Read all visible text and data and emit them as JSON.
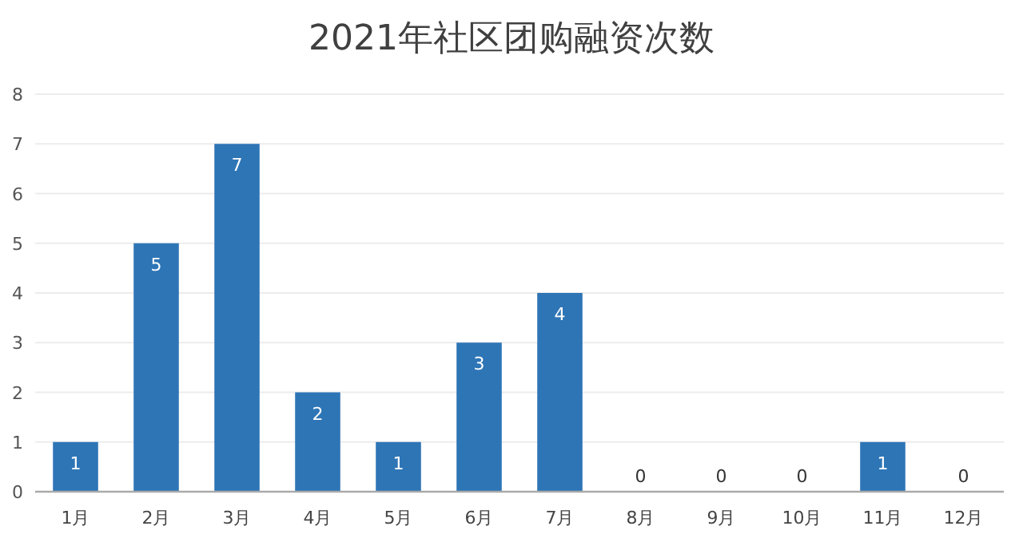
{
  "chart_data": {
    "type": "bar",
    "title": "2021年社区团购融资次数",
    "categories": [
      "1月",
      "2月",
      "3月",
      "4月",
      "5月",
      "6月",
      "7月",
      "8月",
      "9月",
      "10月",
      "11月",
      "12月"
    ],
    "values": [
      1,
      5,
      7,
      2,
      1,
      3,
      4,
      0,
      0,
      0,
      1,
      0
    ],
    "color": "#2e75b6",
    "ylim": [
      0,
      8
    ],
    "yticks": [
      0,
      1,
      2,
      3,
      4,
      5,
      6,
      7,
      8
    ],
    "grid": "y",
    "data_labels": true
  }
}
